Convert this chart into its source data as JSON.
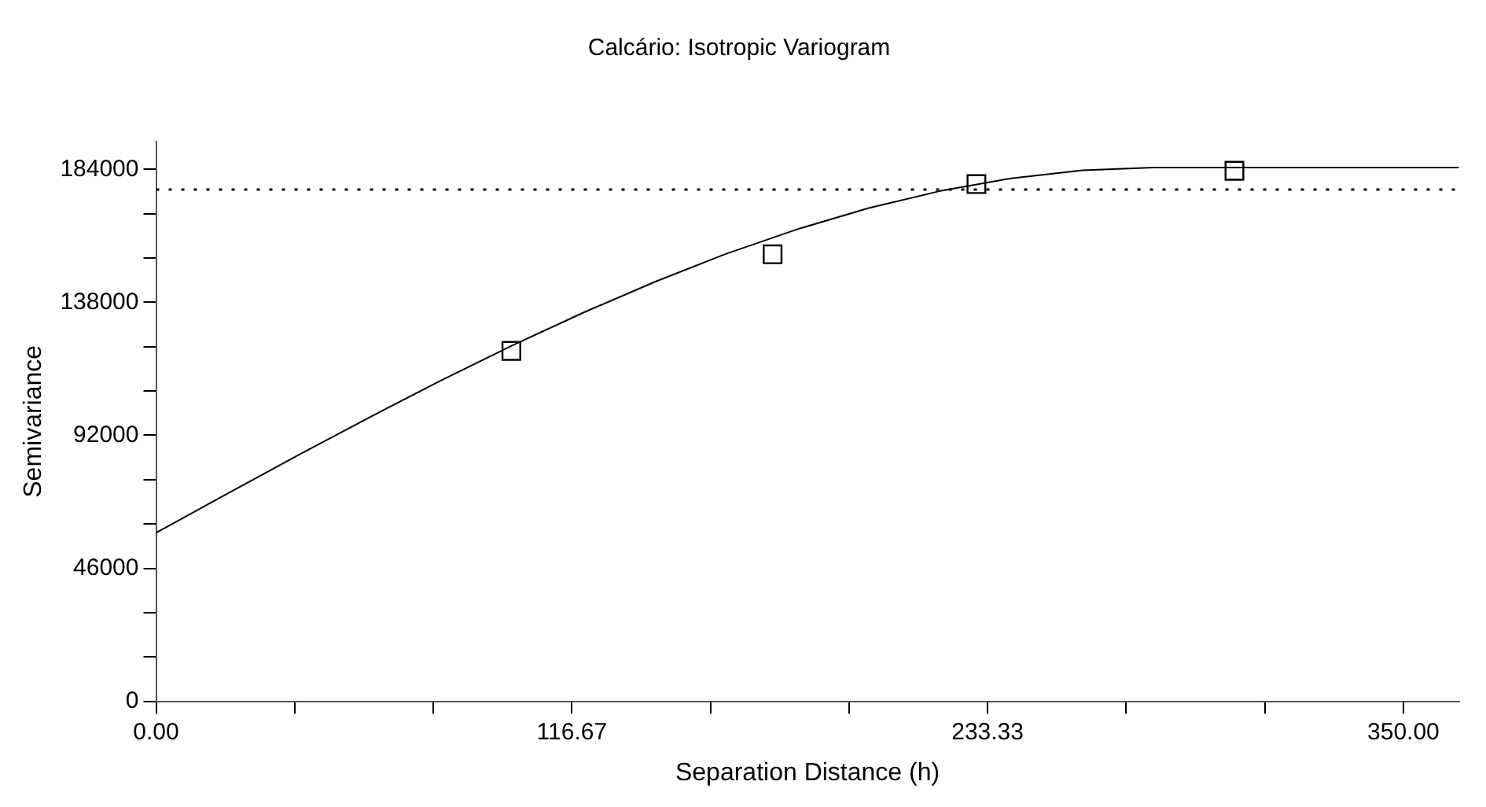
{
  "chart_data": {
    "type": "scatter",
    "title": "Calcário: Isotropic Variogram",
    "xlabel": "Separation Distance (h)",
    "ylabel": "Semivariance",
    "xlim": [
      0,
      365.6
    ],
    "ylim": [
      0,
      193600
    ],
    "xticks": [
      {
        "value": 0,
        "label": "0.00"
      },
      {
        "value": 38.89,
        "label": null
      },
      {
        "value": 77.78,
        "label": null
      },
      {
        "value": 116.67,
        "label": "116.67"
      },
      {
        "value": 155.56,
        "label": null
      },
      {
        "value": 194.44,
        "label": null
      },
      {
        "value": 233.33,
        "label": "233.33"
      },
      {
        "value": 272.22,
        "label": null
      },
      {
        "value": 311.11,
        "label": null
      },
      {
        "value": 350,
        "label": "350.00"
      }
    ],
    "yticks": [
      0,
      {
        "value": 15333,
        "label": null
      },
      {
        "value": 30667,
        "label": null
      },
      46000,
      {
        "value": 61333,
        "label": null
      },
      {
        "value": 76667,
        "label": null
      },
      92000,
      {
        "value": 107333,
        "label": null
      },
      {
        "value": 122667,
        "label": null
      },
      138000,
      {
        "value": 153333,
        "label": null
      },
      {
        "value": 168667,
        "label": null
      },
      184000
    ],
    "grid": false,
    "legend": false,
    "ref_lines": [
      {
        "axis": "y",
        "value": 177000,
        "line_style": "dotted",
        "color": "#000000"
      }
    ],
    "series": [
      {
        "color": "#000000",
        "marker": "square",
        "x": [
          99.7,
          173,
          230.2,
          302.6
        ],
        "values": [
          121200,
          154600,
          178900,
          183500
        ]
      },
      {
        "type": "line",
        "color": "#000000",
        "marker": "none",
        "line_style": "solid",
        "x": [
          0,
          20,
          40,
          60,
          80,
          100,
          120,
          140,
          160,
          180,
          200,
          220,
          240,
          260,
          280,
          365.6
        ],
        "values": [
          58300,
          71800,
          85200,
          98300,
          111000,
          123100,
          134500,
          145100,
          154800,
          163300,
          170600,
          176500,
          180900,
          183700,
          184600,
          184600
        ]
      }
    ]
  }
}
